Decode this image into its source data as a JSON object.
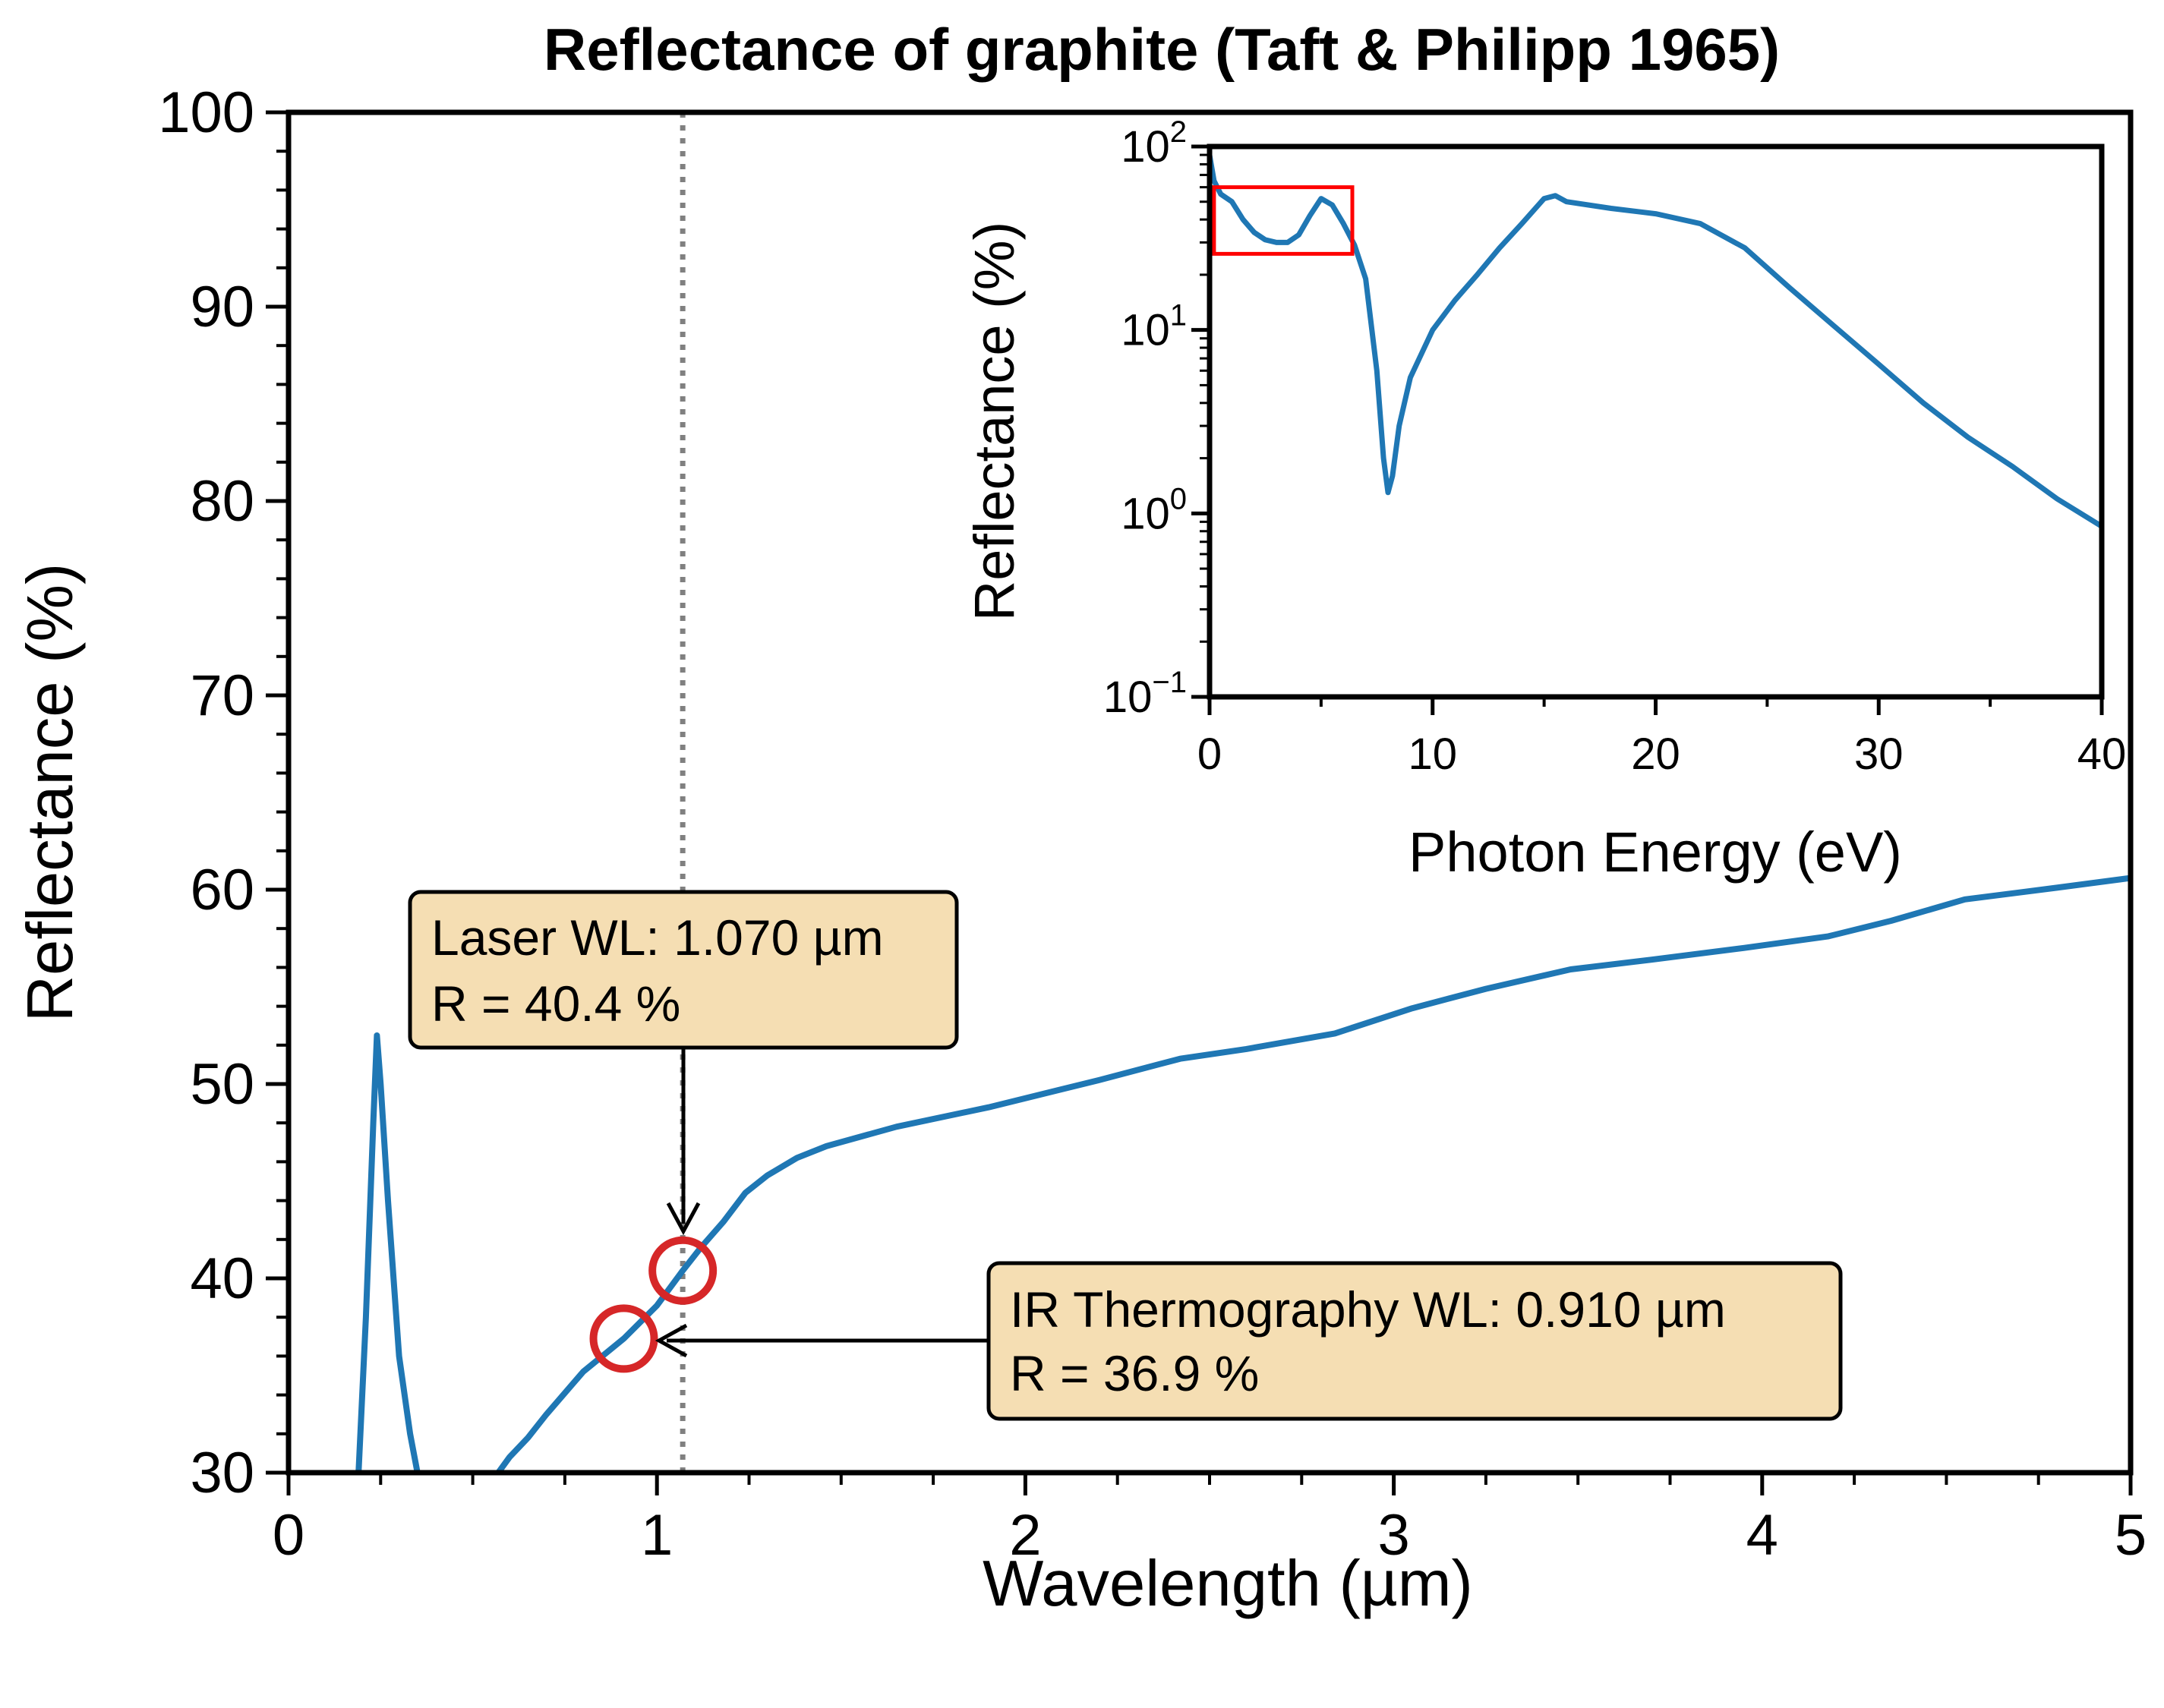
{
  "title": "Reflectance of graphite (Taft & Philipp 1965)",
  "colors": {
    "series": "#1f77b4",
    "marker": "#d62728",
    "inset_box": "#ff0000",
    "annotation_fill": "#f5deb3",
    "vline": "#808080"
  },
  "chart_data": [
    {
      "type": "line",
      "title": "Reflectance of graphite (Taft & Philipp 1965)",
      "xlabel": "Wavelength (µm)",
      "ylabel": "Reflectance (%)",
      "xlim": [
        0,
        5
      ],
      "ylim": [
        30,
        100
      ],
      "xticks": [
        "0",
        "1",
        "2",
        "3",
        "4",
        "5"
      ],
      "yticks": [
        "30",
        "40",
        "50",
        "60",
        "70",
        "80",
        "90",
        "100"
      ],
      "grid": false,
      "series": [
        {
          "x": [
            0.19,
            0.21,
            0.23,
            0.24,
            0.25,
            0.27,
            0.3,
            0.33,
            0.35,
            0.4,
            0.5,
            0.55,
            0.6,
            0.65,
            0.7,
            0.8,
            0.91,
            1.0,
            1.07,
            1.12,
            1.18,
            1.24,
            1.3,
            1.38,
            1.46,
            1.65,
            1.9,
            2.2,
            2.42,
            2.6,
            2.84,
            3.05,
            3.25,
            3.48,
            3.7,
            3.95,
            4.18,
            4.35,
            4.55,
            4.8,
            5.0
          ],
          "y": [
            30,
            38,
            48,
            52.5,
            50,
            44,
            36,
            32,
            30,
            24,
            28,
            29.5,
            30.8,
            31.8,
            33,
            35.2,
            36.9,
            38.6,
            40.4,
            41.6,
            42.9,
            44.4,
            45.3,
            46.2,
            46.8,
            47.8,
            48.8,
            50.2,
            51.3,
            51.8,
            52.6,
            53.9,
            54.9,
            55.9,
            56.4,
            57.0,
            57.6,
            58.4,
            59.5,
            60.1,
            60.6
          ]
        }
      ],
      "vline": {
        "x": 1.07
      },
      "markers": [
        {
          "x": 1.07,
          "y": 40.4
        },
        {
          "x": 0.91,
          "y": 36.9
        }
      ],
      "annotations": [
        {
          "lines": [
            "Laser WL: 1.070 µm",
            "R = 40.4 %"
          ],
          "target_x": 1.07,
          "target_y": 40.4
        },
        {
          "lines": [
            "IR Thermography WL: 0.910 µm",
            "R = 36.9 %"
          ],
          "target_x": 0.91,
          "target_y": 36.9
        }
      ]
    },
    {
      "type": "line",
      "xlabel": "Photon Energy (eV)",
      "ylabel": "Reflectance (%)",
      "xlim": [
        0,
        40
      ],
      "ylim": [
        0.1,
        100
      ],
      "yscale": "log",
      "xticks": [
        "0",
        "10",
        "20",
        "30",
        "40"
      ],
      "yticks": [
        {
          "base": "10",
          "exp": "−1"
        },
        {
          "base": "10",
          "exp": "0"
        },
        {
          "base": "10",
          "exp": "1"
        },
        {
          "base": "10",
          "exp": "2"
        }
      ],
      "grid": false,
      "series": [
        {
          "x": [
            0.0,
            0.2,
            0.5,
            1.0,
            1.5,
            2.0,
            2.5,
            3.0,
            3.5,
            4.0,
            4.5,
            5.0,
            5.5,
            6.0,
            6.5,
            7.0,
            7.5,
            7.8,
            8.0,
            8.2,
            8.5,
            9.0,
            10.0,
            11.0,
            12.0,
            13.0,
            14.0,
            15.0,
            15.5,
            16.0,
            18.0,
            20.0,
            22.0,
            24.0,
            26.0,
            28.0,
            30.0,
            32.0,
            34.0,
            36.0,
            38.0,
            40.0
          ],
          "y": [
            90,
            65,
            55,
            50,
            40,
            34,
            31,
            30,
            30,
            33,
            42,
            52,
            48,
            38,
            29,
            19,
            6,
            2.0,
            1.3,
            1.6,
            3.0,
            5.5,
            10,
            14.5,
            20,
            28,
            38,
            52,
            54,
            50,
            46,
            43,
            38,
            28,
            17,
            10.5,
            6.5,
            4.0,
            2.6,
            1.8,
            1.2,
            0.85
          ]
        }
      ],
      "highlight_box": {
        "x": [
          0.2,
          6.4
        ],
        "y": [
          26,
          60
        ]
      }
    }
  ]
}
